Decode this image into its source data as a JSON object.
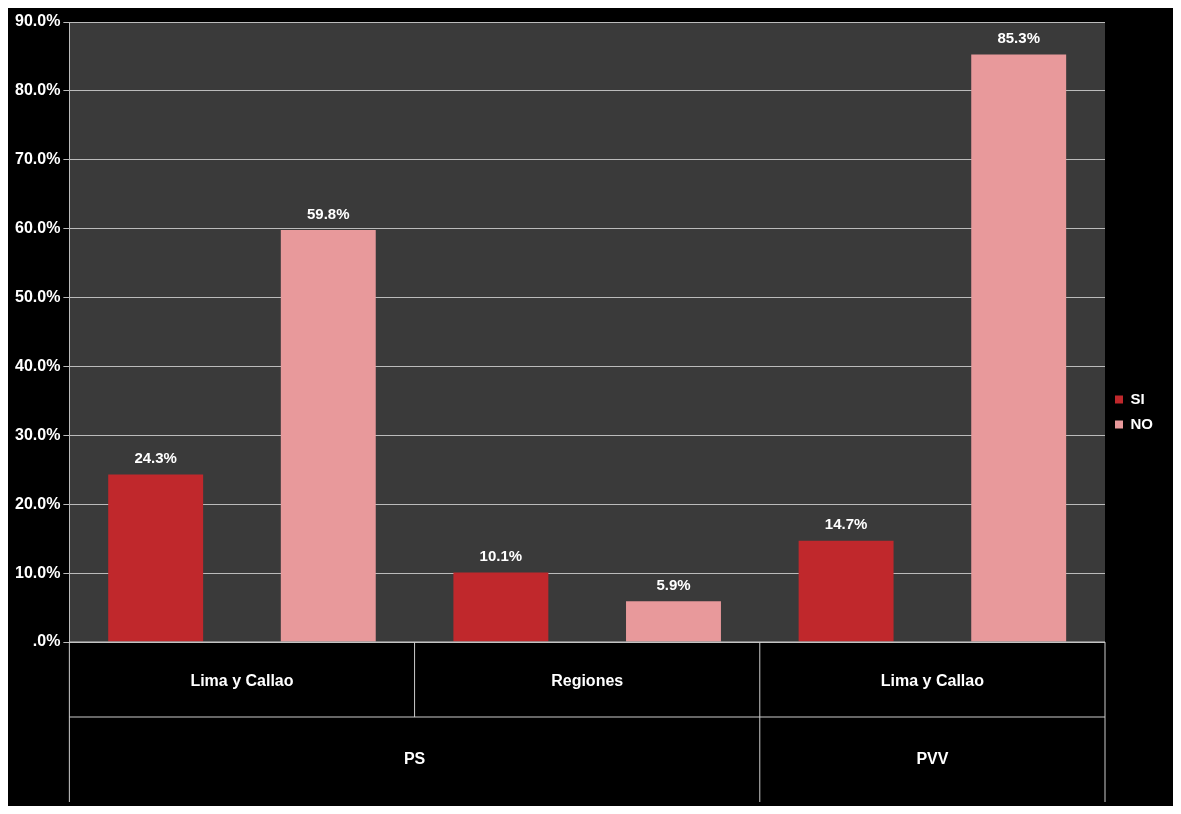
{
  "chart_data": {
    "type": "bar",
    "categories": [
      "Lima y Callao",
      "Regiones",
      "Lima y Callao"
    ],
    "series": [
      {
        "name": "SI",
        "color": "#c0282c",
        "values": [
          24.3,
          10.1,
          14.7
        ],
        "value_labels": [
          "24.3%",
          "10.1%",
          "14.7%"
        ]
      },
      {
        "name": "NO",
        "color": "#e8999b",
        "values": [
          59.8,
          5.9,
          85.3
        ],
        "value_labels": [
          "59.8%",
          "5.9%",
          "85.3%"
        ]
      }
    ],
    "ylim": [
      0,
      90
    ],
    "yticks": [
      {
        "value": 0,
        "label": ".0%"
      },
      {
        "value": 10,
        "label": "10.0%"
      },
      {
        "value": 20,
        "label": "20.0%"
      },
      {
        "value": 30,
        "label": "30.0%"
      },
      {
        "value": 40,
        "label": "40.0%"
      },
      {
        "value": 50,
        "label": "50.0%"
      },
      {
        "value": 60,
        "label": "60.0%"
      },
      {
        "value": 70,
        "label": "70.0%"
      },
      {
        "value": 80,
        "label": "80.0%"
      },
      {
        "value": 90,
        "label": "90.0%"
      }
    ],
    "grid": "y",
    "legend": "right",
    "annotations": [
      "PS",
      "PVV"
    ]
  }
}
